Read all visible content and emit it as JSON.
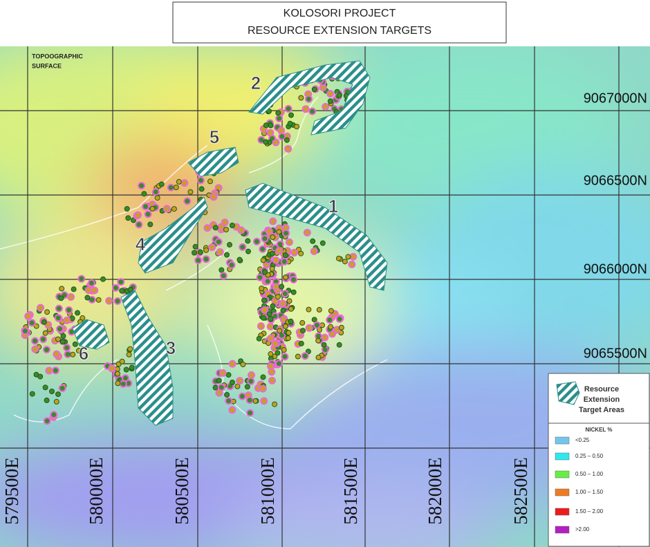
{
  "title": [
    "KOLOSORI PROJECT",
    "RESOURCE EXTENSION TARGETS"
  ],
  "map": {
    "surface_label": [
      "TOPOOGRAPHIC",
      "SURFACE"
    ],
    "targets": [
      "1",
      "2",
      "3",
      "4",
      "5",
      "6"
    ],
    "northings": [
      "9067000N",
      "9066500N",
      "9066000N",
      "9065500N"
    ],
    "eastings": [
      "579500E",
      "580000E",
      "580500E",
      "581000E",
      "581500E",
      "582000E",
      "582500E"
    ]
  },
  "legend": {
    "target_label": [
      "Resource",
      "Extension",
      "Target Areas"
    ],
    "nickel_title": "NICKEL %",
    "classes": [
      {
        "label": "<0.25",
        "color": "#72c6ee"
      },
      {
        "label": "0.25 – 0.50",
        "color": "#2ee8f0"
      },
      {
        "label": "0.50 – 1.00",
        "color": "#66ee44"
      },
      {
        "label": "1.00 – 1.50",
        "color": "#f07a22"
      },
      {
        "label": "1.50 – 2.00",
        "color": "#ee1c1c"
      },
      {
        "label": ">2.00",
        "color": "#b21fc4"
      }
    ]
  }
}
